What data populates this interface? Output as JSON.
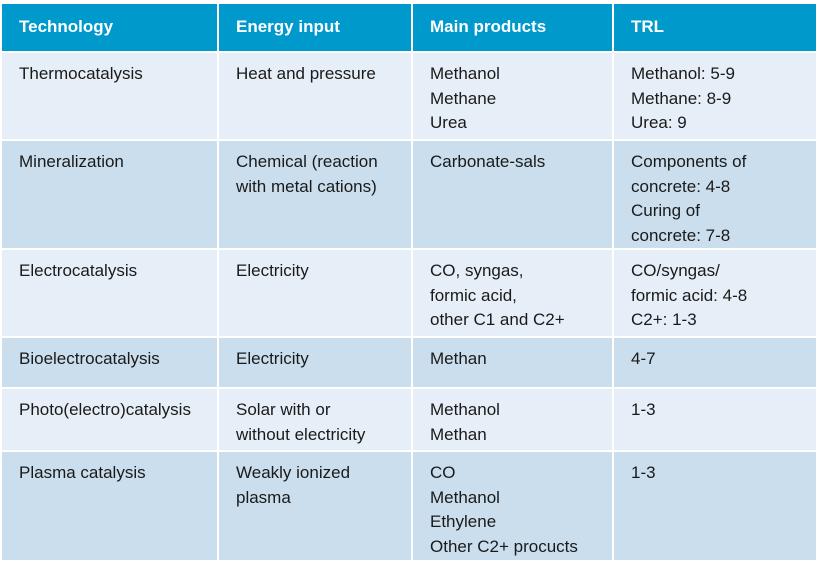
{
  "headers": [
    "Technology",
    "Energy input",
    "Main products",
    "TRL"
  ],
  "rows": [
    {
      "technology": [
        "Thermocatalysis"
      ],
      "energy": [
        "Heat and pressure"
      ],
      "products": [
        "Methanol",
        "Methane",
        "Urea"
      ],
      "trl": [
        "Methanol: 5-9",
        "Methane: 8-9",
        "Urea: 9"
      ]
    },
    {
      "technology": [
        "Mineralization"
      ],
      "energy": [
        "Chemical (reaction",
        "with metal cations)"
      ],
      "products": [
        "Carbonate-sals"
      ],
      "trl": [
        "Components of",
        "concrete: 4-8",
        "Curing of",
        "concrete: 7-8"
      ]
    },
    {
      "technology": [
        "Electrocatalysis"
      ],
      "energy": [
        "Electricity"
      ],
      "products": [
        "CO, syngas,",
        "formic acid,",
        "other C1 and C2+"
      ],
      "trl": [
        "CO/syngas/",
        "formic acid: 4-8",
        "C2+: 1-3"
      ]
    },
    {
      "technology": [
        "Bioelectrocatalysis"
      ],
      "energy": [
        "Electricity"
      ],
      "products": [
        "Methan"
      ],
      "trl": [
        "4-7"
      ]
    },
    {
      "technology": [
        "Photo(electro)catalysis"
      ],
      "energy": [
        "Solar with or",
        "without electricity"
      ],
      "products": [
        "Methanol",
        "Methan"
      ],
      "trl": [
        "1-3"
      ]
    },
    {
      "technology": [
        "Plasma catalysis"
      ],
      "energy": [
        "Weakly ionized",
        "plasma"
      ],
      "products": [
        "CO",
        "Methanol",
        "Ethylene",
        "Other C2+ procucts"
      ],
      "trl": [
        "1-3"
      ]
    }
  ],
  "colors": {
    "header": "#0099cc",
    "row_light": "#e6eef7",
    "row_dark": "#cadeed"
  }
}
